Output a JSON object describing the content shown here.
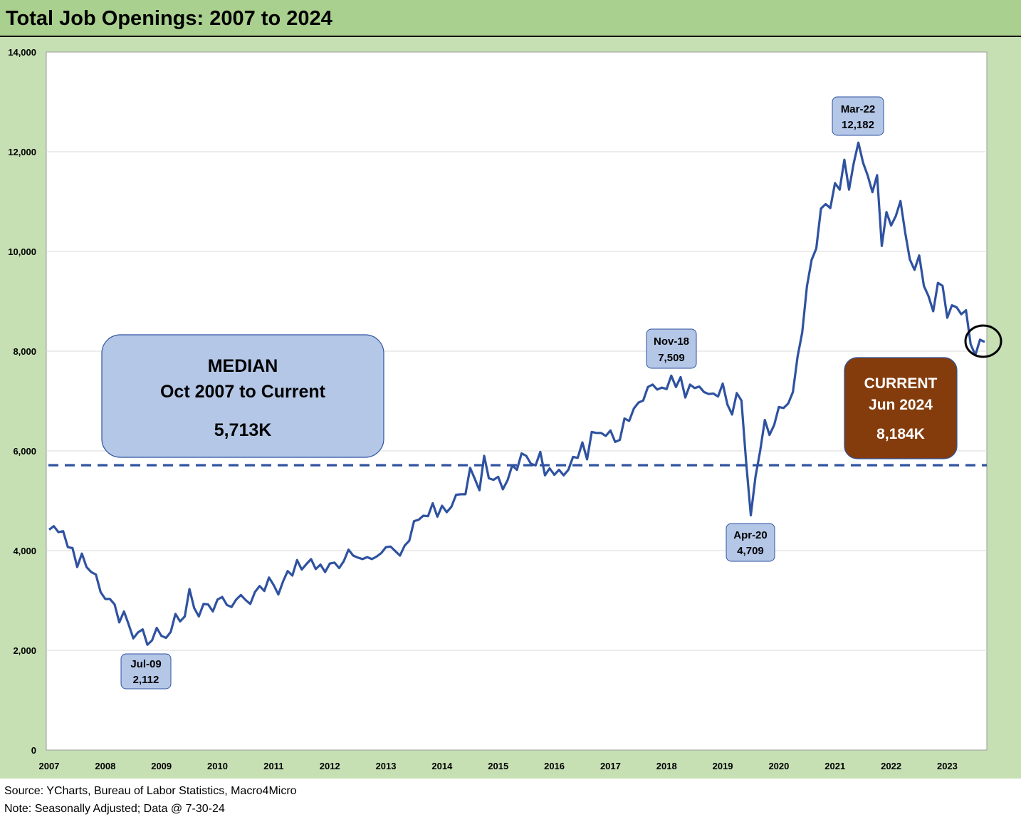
{
  "title": "Total Job Openings: 2007 to 2024",
  "footer": {
    "source": "Source: YCharts, Bureau of Labor Statistics, Macro4Micro",
    "note": "Note: Seasonally Adjusted; Data @ 7-30-24"
  },
  "colors": {
    "line": "#2f52a0",
    "header": "#a9d08e",
    "frame": "#c6e0b4",
    "median_box": "#b4c7e7",
    "current_box": "#843c0c",
    "callout_box": "#b4c7e7"
  },
  "chart_data": {
    "type": "line",
    "title": "Total Job Openings: 2007 to 2024",
    "ylim": [
      0,
      14000
    ],
    "yticks": [
      0,
      2000,
      4000,
      6000,
      8000,
      10000,
      12000,
      14000
    ],
    "ytick_labels": [
      "0",
      "2,000",
      "4,000",
      "6,000",
      "8,000",
      "10,000",
      "12,000",
      "14,000"
    ],
    "xticks": [
      "2007",
      "2008",
      "2009",
      "2010",
      "2011",
      "2012",
      "2013",
      "2014",
      "2015",
      "2016",
      "2017",
      "2018",
      "2019",
      "2020",
      "2021",
      "2022",
      "2023"
    ],
    "grid": true,
    "median": 5713,
    "series": [
      {
        "values": [
          4420,
          4490,
          4370,
          4390,
          4070,
          4050,
          3670,
          3940,
          3670,
          3570,
          3520,
          3170,
          3030,
          3030,
          2920,
          2560,
          2780,
          2520,
          2240,
          2360,
          2420,
          2112,
          2200,
          2450,
          2290,
          2250,
          2370,
          2730,
          2580,
          2680,
          3230,
          2850,
          2680,
          2930,
          2920,
          2780,
          3020,
          3070,
          2910,
          2870,
          3020,
          3110,
          3010,
          2930,
          3170,
          3290,
          3190,
          3460,
          3310,
          3120,
          3380,
          3590,
          3500,
          3810,
          3620,
          3730,
          3830,
          3630,
          3720,
          3570,
          3740,
          3760,
          3650,
          3790,
          4020,
          3900,
          3860,
          3830,
          3870,
          3830,
          3880,
          3950,
          4070,
          4080,
          3990,
          3900,
          4100,
          4200,
          4590,
          4620,
          4700,
          4690,
          4950,
          4680,
          4900,
          4770,
          4880,
          5120,
          5130,
          5130,
          5660,
          5440,
          5210,
          5900,
          5450,
          5420,
          5480,
          5230,
          5410,
          5710,
          5620,
          5950,
          5900,
          5740,
          5710,
          5980,
          5510,
          5650,
          5520,
          5620,
          5510,
          5620,
          5880,
          5860,
          6170,
          5830,
          6380,
          6360,
          6360,
          6300,
          6410,
          6180,
          6220,
          6650,
          6600,
          6850,
          6970,
          7010,
          7280,
          7330,
          7230,
          7270,
          7240,
          7509,
          7280,
          7480,
          7070,
          7330,
          7260,
          7290,
          7180,
          7140,
          7150,
          7090,
          7350,
          6930,
          6730,
          7160,
          7010,
          5780,
          4709,
          5480,
          6000,
          6620,
          6320,
          6520,
          6880,
          6860,
          6950,
          7180,
          7890,
          8380,
          9300,
          9830,
          10060,
          10860,
          10950,
          10870,
          11370,
          11240,
          11840,
          11240,
          11770,
          12182,
          11780,
          11520,
          11190,
          11530,
          10110,
          10790,
          10520,
          10710,
          11010,
          10380,
          9840,
          9630,
          9920,
          9310,
          9100,
          8800,
          9370,
          9310,
          8670,
          8920,
          8880,
          8740,
          8820,
          8140,
          7920,
          8230,
          8184
        ]
      }
    ],
    "annotations": [
      {
        "label": "Jul-09",
        "value": "2,112"
      },
      {
        "label": "Nov-18",
        "value": "7,509"
      },
      {
        "label": "Apr-20",
        "value": "4,709"
      },
      {
        "label": "Mar-22",
        "value": "12,182"
      }
    ],
    "median_box": {
      "line1": "MEDIAN",
      "line2": "Oct 2007 to Current",
      "value": "5,713K"
    },
    "current_box": {
      "line1": "CURRENT",
      "line2": "Jun 2024",
      "value": "8,184K"
    }
  }
}
